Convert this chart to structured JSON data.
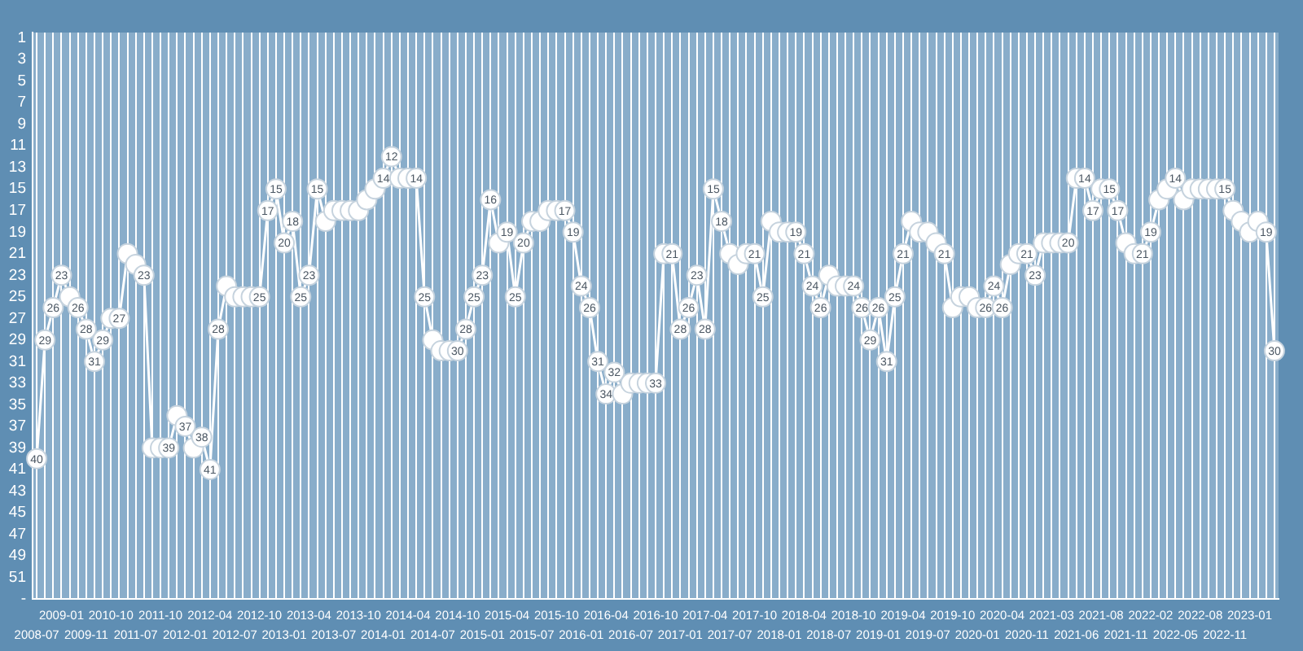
{
  "chart_data": {
    "type": "line",
    "categories": [
      "2008-07",
      null,
      null,
      "2009-01",
      null,
      null,
      "2009-11",
      null,
      null,
      "2010-10",
      null,
      null,
      "2011-07",
      null,
      null,
      "2011-10",
      null,
      null,
      "2012-01",
      null,
      null,
      "2012-04",
      null,
      null,
      "2012-07",
      null,
      null,
      "2012-10",
      null,
      null,
      "2013-01",
      null,
      null,
      "2013-04",
      null,
      null,
      "2013-07",
      null,
      null,
      "2013-10",
      null,
      null,
      "2014-01",
      null,
      null,
      "2014-04",
      null,
      null,
      "2014-07",
      null,
      null,
      "2014-10",
      null,
      null,
      "2015-01",
      null,
      null,
      "2015-04",
      null,
      null,
      "2015-07",
      null,
      null,
      "2015-10",
      null,
      null,
      "2016-01",
      null,
      null,
      "2016-04",
      null,
      null,
      "2016-07",
      null,
      null,
      "2016-10",
      null,
      null,
      "2017-01",
      null,
      null,
      "2017-04",
      null,
      null,
      "2017-07",
      null,
      null,
      "2017-10",
      null,
      null,
      "2018-01",
      null,
      null,
      "2018-04",
      null,
      null,
      "2018-07",
      null,
      null,
      "2018-10",
      null,
      null,
      "2019-01",
      null,
      null,
      "2019-04",
      null,
      null,
      "2019-07",
      null,
      null,
      "2019-10",
      null,
      null,
      "2020-01",
      null,
      null,
      "2020-04",
      null,
      null,
      "2020-11",
      null,
      null,
      "2021-03",
      null,
      null,
      "2021-06",
      null,
      null,
      "2021-08",
      null,
      null,
      "2021-11",
      null,
      null,
      "2022-02",
      null,
      null,
      "2022-05",
      null,
      null,
      "2022-08",
      null,
      null,
      "2022-11",
      null,
      null,
      "2023-01",
      null,
      null,
      null
    ],
    "values": [
      40,
      29,
      26,
      23,
      25,
      26,
      28,
      31,
      29,
      27,
      27,
      21,
      22,
      23,
      39,
      39,
      39,
      36,
      37,
      39,
      38,
      41,
      28,
      24,
      25,
      25,
      25,
      25,
      17,
      15,
      20,
      18,
      25,
      23,
      15,
      18,
      17,
      17,
      17,
      17,
      16,
      15,
      14,
      12,
      14,
      14,
      14,
      25,
      29,
      30,
      30,
      30,
      28,
      25,
      23,
      16,
      20,
      19,
      25,
      20,
      18,
      18,
      17,
      17,
      17,
      19,
      24,
      26,
      31,
      34,
      32,
      34,
      33,
      33,
      33,
      33,
      21,
      21,
      28,
      26,
      23,
      28,
      15,
      18,
      21,
      22,
      21,
      21,
      25,
      18,
      19,
      19,
      19,
      21,
      24,
      26,
      23,
      24,
      24,
      24,
      26,
      29,
      26,
      31,
      25,
      21,
      18,
      19,
      19,
      20,
      21,
      26,
      25,
      25,
      26,
      26,
      24,
      26,
      22,
      21,
      21,
      23,
      20,
      20,
      20,
      20,
      14,
      14,
      17,
      15,
      15,
      17,
      20,
      21,
      21,
      19,
      16,
      15,
      14,
      16,
      15,
      15,
      15,
      15,
      15,
      17,
      18,
      19,
      18,
      19,
      30
    ],
    "value_labels": [
      "40",
      "29",
      "26",
      "23",
      null,
      "26",
      "28",
      "31",
      "29",
      null,
      "27",
      null,
      null,
      "23",
      null,
      null,
      "39",
      null,
      "37",
      null,
      "38",
      "41",
      "28",
      null,
      null,
      null,
      null,
      "25",
      "17",
      "15",
      "20",
      "18",
      "25",
      "23",
      "15",
      null,
      null,
      null,
      null,
      null,
      null,
      null,
      "14",
      "12",
      null,
      null,
      "14",
      "25",
      null,
      null,
      null,
      "30",
      "28",
      "25",
      "23",
      "16",
      null,
      "19",
      "25",
      "20",
      null,
      null,
      null,
      null,
      "17",
      "19",
      "24",
      "26",
      "31",
      "34",
      "32",
      null,
      null,
      null,
      null,
      "33",
      null,
      "21",
      "28",
      "26",
      "23",
      "28",
      "15",
      "18",
      null,
      null,
      null,
      "21",
      "25",
      null,
      null,
      null,
      "19",
      "21",
      "24",
      "26",
      null,
      null,
      null,
      "24",
      "26",
      "29",
      "26",
      "31",
      "25",
      "21",
      null,
      null,
      null,
      null,
      "21",
      null,
      null,
      null,
      null,
      "26",
      "24",
      "26",
      null,
      null,
      "21",
      "23",
      null,
      null,
      null,
      "20",
      null,
      "14",
      "17",
      null,
      "15",
      "17",
      null,
      null,
      "21",
      "19",
      null,
      null,
      "14",
      null,
      null,
      null,
      null,
      null,
      "15",
      null,
      null,
      null,
      null,
      "19",
      "30"
    ],
    "color": "#ffffff",
    "ylim": [
      53,
      0.5
    ],
    "yticks": [
      1,
      3,
      5,
      7,
      9,
      11,
      13,
      15,
      17,
      19,
      21,
      23,
      25,
      27,
      29,
      31,
      33,
      35,
      37,
      39,
      41,
      43,
      45,
      47,
      49,
      51,
      {
        "value": 53,
        "label": "-"
      }
    ],
    "grid": "x",
    "marker": "circle"
  }
}
